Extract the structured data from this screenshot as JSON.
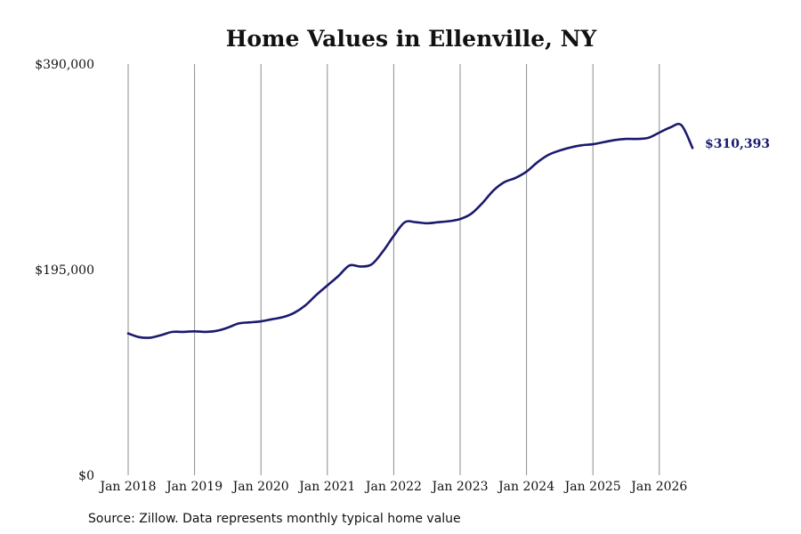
{
  "chart_data": {
    "type": "line",
    "title": "Home Values in Ellenville, NY",
    "xlabel": "",
    "ylabel": "",
    "x_tick_labels": [
      "Jan 2018",
      "Jan 2019",
      "Jan 2020",
      "Jan 2021",
      "Jan 2022",
      "Jan 2023",
      "Jan 2024",
      "Jan 2025",
      "Jan 2026"
    ],
    "y_tick_labels": [
      "$390,000",
      "$195,000",
      "$0"
    ],
    "y_ticks": [
      390000,
      195000,
      0
    ],
    "ylim": [
      0,
      390000
    ],
    "xlim": [
      "2018-01",
      "2026-07"
    ],
    "grid": "vertical",
    "line_color": "#1a1a6e",
    "end_label": "$310,393",
    "source": "Source: Zillow. Data represents monthly typical home value",
    "series": [
      {
        "x": [
          "2018-01",
          "2018-03",
          "2018-05",
          "2018-07",
          "2018-09",
          "2018-11",
          "2019-01",
          "2019-03",
          "2019-05",
          "2019-07",
          "2019-09",
          "2019-11",
          "2020-01",
          "2020-03",
          "2020-05",
          "2020-07",
          "2020-09",
          "2020-11",
          "2021-01",
          "2021-03",
          "2021-05",
          "2021-07",
          "2021-09",
          "2021-11",
          "2022-01",
          "2022-03",
          "2022-05",
          "2022-07",
          "2022-09",
          "2022-11",
          "2023-01",
          "2023-03",
          "2023-05",
          "2023-07",
          "2023-09",
          "2023-11",
          "2024-01",
          "2024-03",
          "2024-05",
          "2024-07",
          "2024-09",
          "2024-11",
          "2025-01",
          "2025-03",
          "2025-05",
          "2025-07",
          "2025-09",
          "2025-11",
          "2026-01",
          "2026-03",
          "2026-05",
          "2026-07"
        ],
        "values": [
          134500,
          131000,
          130500,
          133000,
          136000,
          136000,
          136500,
          136000,
          137000,
          140000,
          144000,
          145000,
          146000,
          148000,
          150000,
          154000,
          161000,
          171000,
          180000,
          189000,
          199000,
          198000,
          200000,
          212000,
          227000,
          240000,
          240000,
          239000,
          240000,
          241000,
          243000,
          248000,
          258000,
          270000,
          278000,
          282000,
          288000,
          297000,
          304000,
          308000,
          311000,
          313000,
          314000,
          316000,
          318000,
          319000,
          319000,
          320000,
          325000,
          330000,
          332000,
          310393
        ]
      }
    ]
  }
}
